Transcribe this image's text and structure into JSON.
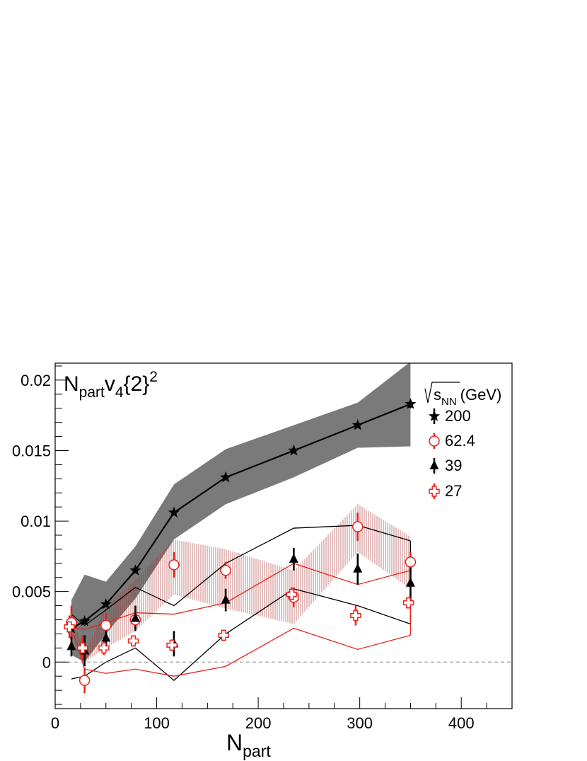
{
  "chart_data": {
    "type": "scatter",
    "title": "",
    "panel_label": {
      "base": "N",
      "base_sub": "part",
      "main": "v",
      "main_sub": "4",
      "braces": "{2}",
      "sup": "2"
    },
    "xlabel": {
      "base": "N",
      "sub": "part"
    },
    "ylabel": "",
    "xlim": [
      0,
      450
    ],
    "ylim": [
      -0.0033,
      0.0212
    ],
    "x_ticks": [
      0,
      100,
      200,
      300,
      400
    ],
    "x_tick_labels": [
      "0",
      "100",
      "200",
      "300",
      "400"
    ],
    "y_ticks": [
      0,
      0.005,
      0.01,
      0.015,
      0.02
    ],
    "y_tick_labels": [
      "0",
      "0.005",
      "0.01",
      "0.015",
      "0.02"
    ],
    "reference_line": {
      "y": 0,
      "style": "dashed"
    },
    "legend": {
      "placement": "top-right",
      "header": {
        "sqrt": "s",
        "sub": "NN",
        "unit": "(GeV)"
      },
      "entries": [
        "200",
        "62.4",
        "39",
        "27"
      ]
    },
    "colors": {
      "black": "#000000",
      "red": "#e8231f",
      "grey_band": "#7a7a7a",
      "red_hatch": "#a52a2a"
    },
    "series": [
      {
        "name": "200",
        "marker": "star",
        "color": "#000000",
        "connected": true,
        "x": [
          16,
          29,
          50,
          79,
          117,
          168,
          235,
          298,
          350
        ],
        "y": [
          0.0024,
          0.0029,
          0.0041,
          0.0065,
          0.0106,
          0.0131,
          0.015,
          0.0168,
          0.0183
        ],
        "err": [
          0.0003,
          0.0002,
          0.0002,
          0.0002,
          0.0002,
          0.0002,
          0.0002,
          0.0002,
          0.0003
        ],
        "sys_band": {
          "style": "filled",
          "x": [
            16,
            29,
            50,
            79,
            117,
            168,
            235,
            298,
            350
          ],
          "low": [
            0.0005,
            0.0,
            0.002,
            0.0045,
            0.0087,
            0.0112,
            0.0131,
            0.0152,
            0.0153
          ],
          "high": [
            0.0044,
            0.0062,
            0.0057,
            0.0082,
            0.0126,
            0.0151,
            0.0168,
            0.0184,
            0.0213
          ]
        }
      },
      {
        "name": "62.4",
        "marker": "open-circle",
        "color": "#e8231f",
        "connected": false,
        "x": [
          16,
          29,
          50,
          79,
          117,
          168,
          235,
          298,
          350
        ],
        "y": [
          0.0028,
          -0.0013,
          0.0026,
          0.003,
          0.0069,
          0.0065,
          0.0046,
          0.0096,
          0.0071
        ],
        "err": [
          0.0012,
          0.0009,
          0.0009,
          0.0006,
          0.0009,
          0.0006,
          0.0007,
          0.001,
          0.0007
        ],
        "sys_band": {
          "style": "hatched",
          "x": [
            16,
            29,
            50,
            79,
            117,
            168,
            235,
            298,
            350
          ],
          "low": [
            0.002,
            0.0,
            0.001,
            0.0022,
            0.0048,
            0.0038,
            0.0027,
            0.0078,
            0.0052
          ],
          "high": [
            0.0036,
            0.0005,
            0.004,
            0.0058,
            0.0087,
            0.008,
            0.0065,
            0.0112,
            0.0089
          ]
        }
      },
      {
        "name": "39",
        "marker": "filled-triangle",
        "color": "#000000",
        "connected": false,
        "x": [
          16,
          29,
          50,
          79,
          117,
          168,
          235,
          298,
          350
        ],
        "y": [
          0.0011,
          0.0008,
          0.0017,
          0.0031,
          0.0013,
          0.0044,
          0.0073,
          0.0066,
          0.0056
        ],
        "err": [
          0.0007,
          0.0011,
          0.0008,
          0.0009,
          0.0009,
          0.0008,
          0.0008,
          0.0011,
          0.0013
        ],
        "sys_band": {
          "style": "outline",
          "x": [
            16,
            29,
            50,
            79,
            117,
            168,
            235,
            298,
            350
          ],
          "low": [
            -0.0012,
            -0.001,
            0.0,
            0.001,
            -0.0013,
            0.002,
            0.0052,
            0.004,
            0.0027
          ],
          "high": [
            0.0034,
            0.0026,
            0.0037,
            0.0053,
            0.004,
            0.007,
            0.0095,
            0.0097,
            0.0086
          ]
        }
      },
      {
        "name": "27",
        "marker": "open-cross",
        "color": "#e8231f",
        "connected": false,
        "x": [
          14,
          27,
          48,
          77,
          115,
          166,
          233,
          296,
          348
        ],
        "y": [
          0.0025,
          0.001,
          0.001,
          0.0015,
          0.0012,
          0.0019,
          0.0048,
          0.0033,
          0.0042
        ],
        "err": [
          0.0008,
          0.0009,
          0.0005,
          0.0004,
          0.0004,
          0.0004,
          0.0005,
          0.0007,
          0.0004
        ],
        "sys_band": {
          "style": "outline",
          "x": [
            16,
            29,
            50,
            79,
            117,
            168,
            235,
            298,
            350
          ],
          "low": [
            0.0025,
            -0.0005,
            -0.0008,
            -0.0005,
            -0.001,
            -0.0003,
            0.0024,
            0.0009,
            0.0019
          ],
          "high": [
            0.0025,
            0.0023,
            0.0028,
            0.0035,
            0.0034,
            0.0042,
            0.007,
            0.0055,
            0.0065
          ]
        }
      }
    ]
  }
}
